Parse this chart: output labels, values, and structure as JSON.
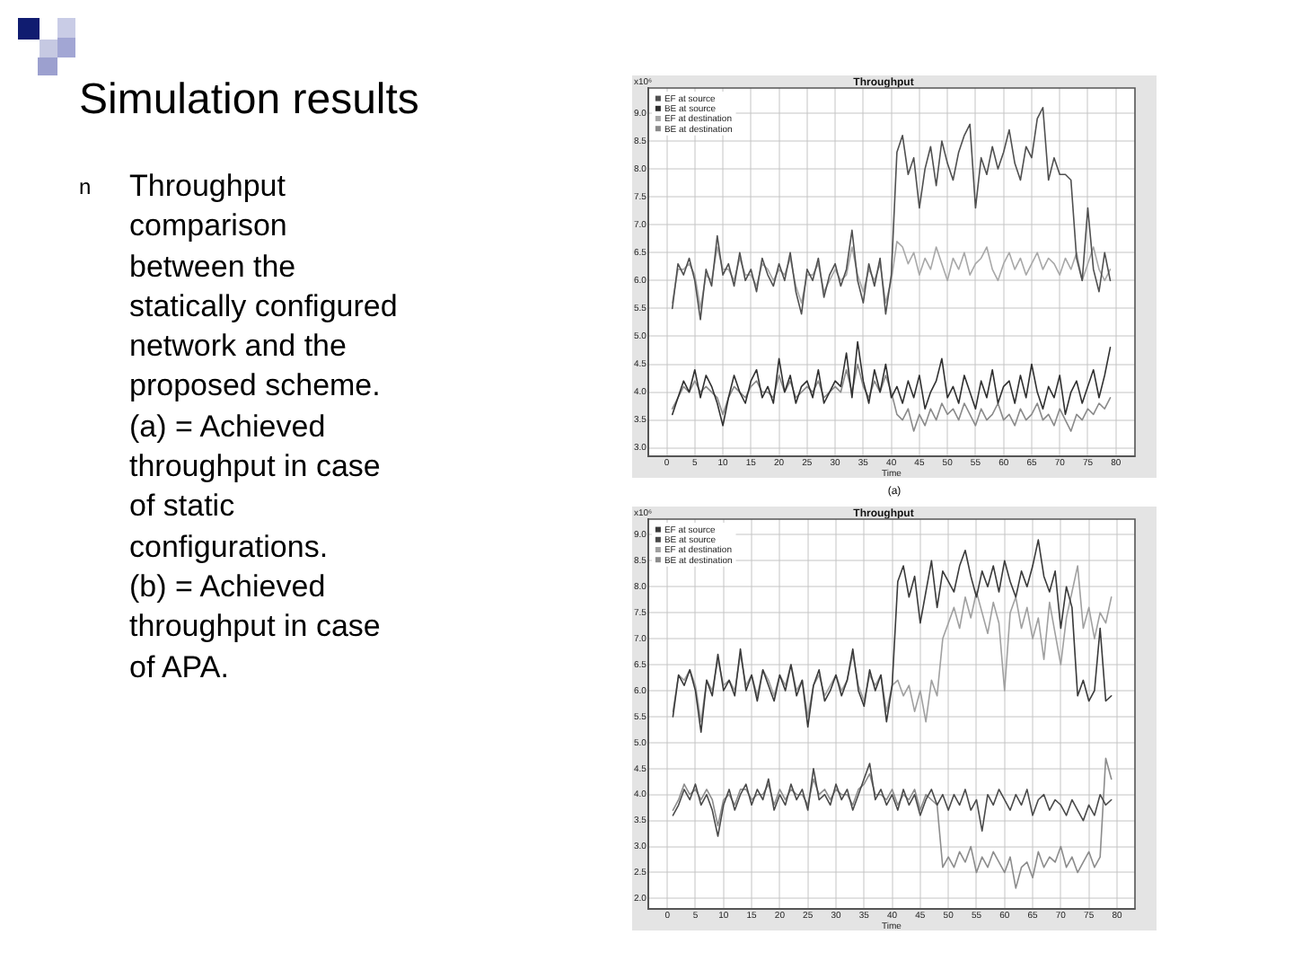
{
  "chart_data": [
    {
      "type": "other",
      "title": "Simulation results",
      "annotations": [
        "n",
        "Throughput\ncomparison\nbetween the\nstatically configured\nnetwork and the\nproposed scheme.\n(a) = Achieved\nthroughput in case\nof static\nconfigurations.",
        "(b) = Achieved\nthroughput in case\nof APA."
      ]
    },
    {
      "type": "line",
      "title": "Throughput",
      "xlabel": "Time",
      "annotations": [
        "x10⁶",
        "(a)"
      ],
      "grid": true,
      "legend": "top left",
      "x": [
        1,
        2,
        3,
        4,
        5,
        6,
        7,
        8,
        9,
        10,
        11,
        12,
        13,
        14,
        15,
        16,
        17,
        18,
        19,
        20,
        21,
        22,
        23,
        24,
        25,
        26,
        27,
        28,
        29,
        30,
        31,
        32,
        33,
        34,
        35,
        36,
        37,
        38,
        39,
        40,
        41,
        42,
        43,
        44,
        45,
        46,
        47,
        48,
        49,
        50,
        51,
        52,
        53,
        54,
        55,
        56,
        57,
        58,
        59,
        60,
        61,
        62,
        63,
        64,
        65,
        66,
        67,
        68,
        69,
        70,
        71,
        72,
        73,
        74,
        75,
        76,
        77,
        78,
        79
      ],
      "xlim": [
        -3.3,
        83.4
      ],
      "xticks": [
        0,
        5,
        10,
        15,
        20,
        25,
        30,
        35,
        40,
        45,
        50,
        55,
        60,
        65,
        70,
        75,
        80
      ],
      "ylim": [
        2.85,
        9.45
      ],
      "yticks": [
        {
          "value": 3,
          "label": "3.0"
        },
        {
          "value": 3.5,
          "label": "3.5"
        },
        {
          "value": 4,
          "label": "4.0"
        },
        {
          "value": 4.5,
          "label": "4.5"
        },
        {
          "value": 5,
          "label": "5.0"
        },
        {
          "value": 5.5,
          "label": "5.5"
        },
        {
          "value": 6,
          "label": "6.0"
        },
        {
          "value": 6.5,
          "label": "6.5"
        },
        {
          "value": 7,
          "label": "7.0"
        },
        {
          "value": 7.5,
          "label": "7.5"
        },
        {
          "value": 8,
          "label": "8.0"
        },
        {
          "value": 8.5,
          "label": "8.5"
        },
        {
          "value": 9,
          "label": "9.0"
        }
      ],
      "series": [
        {
          "name": "EF at source",
          "color": "#505050",
          "values": [
            5.5,
            6.3,
            6.1,
            6.4,
            6.0,
            5.3,
            6.2,
            5.9,
            6.8,
            6.1,
            6.3,
            5.9,
            6.5,
            6.0,
            6.2,
            5.8,
            6.4,
            6.1,
            5.9,
            6.3,
            6.0,
            6.5,
            5.8,
            5.4,
            6.2,
            6.0,
            6.4,
            5.7,
            6.1,
            6.3,
            5.9,
            6.2,
            6.9,
            6.0,
            5.6,
            6.3,
            5.9,
            6.4,
            5.4,
            6.1,
            8.3,
            8.6,
            7.9,
            8.2,
            7.3,
            8.0,
            8.4,
            7.7,
            8.5,
            8.1,
            7.8,
            8.3,
            8.6,
            8.8,
            7.3,
            8.2,
            7.9,
            8.4,
            8.0,
            8.3,
            8.7,
            8.1,
            7.8,
            8.4,
            8.2,
            8.9,
            9.1,
            7.8,
            8.2,
            7.9,
            7.9,
            7.8,
            6.4,
            6.0,
            7.3,
            6.2,
            5.8,
            6.5,
            6.0
          ]
        },
        {
          "name": "BE at source",
          "color": "#303030",
          "values": [
            3.6,
            3.9,
            4.2,
            4.0,
            4.4,
            3.9,
            4.3,
            4.1,
            3.8,
            3.4,
            3.9,
            4.3,
            4.0,
            3.8,
            4.2,
            4.4,
            3.9,
            4.1,
            3.8,
            4.6,
            4.0,
            4.3,
            3.8,
            4.1,
            4.2,
            3.9,
            4.4,
            3.8,
            4.0,
            4.2,
            4.1,
            4.7,
            3.9,
            4.9,
            4.2,
            3.8,
            4.4,
            4.0,
            4.5,
            3.9,
            4.1,
            3.8,
            4.2,
            3.9,
            4.3,
            3.7,
            4.0,
            4.2,
            4.6,
            3.9,
            4.1,
            3.8,
            4.3,
            4.0,
            3.7,
            4.2,
            3.9,
            4.4,
            3.8,
            4.1,
            4.2,
            3.8,
            4.3,
            3.9,
            4.5,
            4.0,
            3.7,
            4.1,
            3.9,
            4.3,
            3.6,
            4.0,
            4.2,
            3.8,
            4.1,
            4.4,
            3.9,
            4.3,
            4.8
          ]
        },
        {
          "name": "EF at destination",
          "color": "#a8a8a8",
          "values": [
            5.6,
            6.2,
            6.2,
            6.3,
            6.1,
            5.5,
            6.1,
            6.0,
            6.6,
            6.2,
            6.2,
            6.0,
            6.4,
            6.1,
            6.1,
            5.9,
            6.3,
            6.2,
            6.0,
            6.2,
            6.1,
            6.4,
            5.9,
            5.6,
            6.1,
            6.1,
            6.3,
            5.8,
            6.0,
            6.2,
            6.0,
            6.1,
            6.6,
            6.1,
            5.8,
            6.2,
            6.0,
            6.3,
            5.6,
            6.0,
            6.7,
            6.6,
            6.3,
            6.5,
            6.1,
            6.4,
            6.2,
            6.6,
            6.3,
            6.0,
            6.4,
            6.2,
            6.5,
            6.1,
            6.3,
            6.4,
            6.6,
            6.2,
            6.0,
            6.3,
            6.5,
            6.2,
            6.4,
            6.1,
            6.3,
            6.5,
            6.2,
            6.4,
            6.3,
            6.1,
            6.4,
            6.2,
            6.5,
            6.0,
            6.3,
            6.6,
            6.2,
            6.0,
            6.2
          ]
        },
        {
          "name": "BE at destination",
          "color": "#8a8a8a",
          "values": [
            3.7,
            3.9,
            4.1,
            4.0,
            4.2,
            4.0,
            4.1,
            4.0,
            3.9,
            3.6,
            3.9,
            4.1,
            4.0,
            3.9,
            4.1,
            4.2,
            4.0,
            4.0,
            3.9,
            4.3,
            4.0,
            4.2,
            3.9,
            4.0,
            4.1,
            4.0,
            4.2,
            3.9,
            4.0,
            4.1,
            4.0,
            4.4,
            4.0,
            4.5,
            4.1,
            3.9,
            4.2,
            4.0,
            4.3,
            4.0,
            3.6,
            3.5,
            3.7,
            3.3,
            3.6,
            3.4,
            3.7,
            3.5,
            3.8,
            3.6,
            3.7,
            3.5,
            3.8,
            3.6,
            3.4,
            3.7,
            3.5,
            3.6,
            3.8,
            3.5,
            3.6,
            3.4,
            3.7,
            3.5,
            3.6,
            3.8,
            3.5,
            3.6,
            3.4,
            3.7,
            3.5,
            3.3,
            3.6,
            3.5,
            3.7,
            3.6,
            3.8,
            3.7,
            3.9
          ]
        }
      ]
    },
    {
      "type": "line",
      "title": "Throughput",
      "xlabel": "Time",
      "annotations": [
        "x10⁶"
      ],
      "grid": true,
      "legend": "top left",
      "x": [
        1,
        2,
        3,
        4,
        5,
        6,
        7,
        8,
        9,
        10,
        11,
        12,
        13,
        14,
        15,
        16,
        17,
        18,
        19,
        20,
        21,
        22,
        23,
        24,
        25,
        26,
        27,
        28,
        29,
        30,
        31,
        32,
        33,
        34,
        35,
        36,
        37,
        38,
        39,
        40,
        41,
        42,
        43,
        44,
        45,
        46,
        47,
        48,
        49,
        50,
        51,
        52,
        53,
        54,
        55,
        56,
        57,
        58,
        59,
        60,
        61,
        62,
        63,
        64,
        65,
        66,
        67,
        68,
        69,
        70,
        71,
        72,
        73,
        74,
        75,
        76,
        77,
        78,
        79
      ],
      "xlim": [
        -3.4,
        83.2
      ],
      "xticks": [
        0,
        5,
        10,
        15,
        20,
        25,
        30,
        35,
        40,
        45,
        50,
        55,
        60,
        65,
        70,
        75,
        80
      ],
      "ylim": [
        1.8,
        9.3
      ],
      "yticks": [
        {
          "value": 2,
          "label": "2.0"
        },
        {
          "value": 2.5,
          "label": "2.5"
        },
        {
          "value": 3,
          "label": "3.0"
        },
        {
          "value": 3.5,
          "label": "3.5"
        },
        {
          "value": 4,
          "label": "4.0"
        },
        {
          "value": 4.5,
          "label": "4.5"
        },
        {
          "value": 5,
          "label": "5.0"
        },
        {
          "value": 5.5,
          "label": "5.5"
        },
        {
          "value": 6,
          "label": "6.0"
        },
        {
          "value": 6.5,
          "label": "6.5"
        },
        {
          "value": 7,
          "label": "7.0"
        },
        {
          "value": 7.5,
          "label": "7.5"
        },
        {
          "value": 8,
          "label": "8.0"
        },
        {
          "value": 8.5,
          "label": "8.5"
        },
        {
          "value": 9,
          "label": "9.0"
        }
      ],
      "series": [
        {
          "name": "EF at source",
          "color": "#3a3a3a",
          "values": [
            5.5,
            6.3,
            6.1,
            6.4,
            6.0,
            5.2,
            6.2,
            5.9,
            6.7,
            6.0,
            6.2,
            5.9,
            6.8,
            6.0,
            6.3,
            5.8,
            6.4,
            6.1,
            5.8,
            6.3,
            6.0,
            6.5,
            5.9,
            6.2,
            5.3,
            6.1,
            6.4,
            5.8,
            6.0,
            6.3,
            5.9,
            6.2,
            6.8,
            6.0,
            5.7,
            6.4,
            6.0,
            6.3,
            5.4,
            6.1,
            8.1,
            8.4,
            7.8,
            8.2,
            7.3,
            7.9,
            8.5,
            7.6,
            8.3,
            8.1,
            7.9,
            8.4,
            8.7,
            8.2,
            7.8,
            8.3,
            8.0,
            8.4,
            7.9,
            8.5,
            8.1,
            7.8,
            8.3,
            8.0,
            8.4,
            8.9,
            8.2,
            7.9,
            8.3,
            7.2,
            8.0,
            7.6,
            5.9,
            6.2,
            5.8,
            6.0,
            7.2,
            5.8,
            5.9
          ]
        },
        {
          "name": "BE at source",
          "color": "#4a4a4a",
          "values": [
            3.6,
            3.8,
            4.1,
            3.9,
            4.2,
            3.8,
            4.0,
            3.7,
            3.2,
            3.8,
            4.1,
            3.7,
            4.0,
            4.2,
            3.8,
            4.1,
            3.9,
            4.3,
            3.7,
            4.0,
            3.8,
            4.2,
            3.9,
            4.1,
            3.7,
            4.5,
            3.9,
            4.0,
            3.8,
            4.2,
            3.9,
            4.1,
            3.7,
            4.0,
            4.3,
            4.6,
            3.9,
            4.1,
            3.8,
            4.0,
            3.7,
            4.1,
            3.8,
            4.0,
            3.6,
            3.9,
            4.1,
            3.8,
            4.0,
            3.7,
            4.0,
            3.8,
            4.1,
            3.7,
            3.9,
            3.3,
            4.0,
            3.8,
            4.1,
            3.9,
            3.7,
            4.0,
            3.8,
            4.1,
            3.6,
            3.9,
            4.0,
            3.7,
            3.9,
            3.8,
            3.6,
            3.9,
            3.7,
            3.5,
            3.8,
            3.6,
            4.0,
            3.8,
            3.9
          ]
        },
        {
          "name": "EF at destination",
          "color": "#a0a0a0",
          "values": [
            5.6,
            6.3,
            6.2,
            6.4,
            6.1,
            5.4,
            6.2,
            6.0,
            6.6,
            6.1,
            6.2,
            6.0,
            6.7,
            6.1,
            6.3,
            5.9,
            6.4,
            6.2,
            5.9,
            6.3,
            6.1,
            6.5,
            6.0,
            6.2,
            5.5,
            6.1,
            6.3,
            5.9,
            6.1,
            6.3,
            6.0,
            6.2,
            6.7,
            6.1,
            5.8,
            6.3,
            6.1,
            6.3,
            5.6,
            6.1,
            6.2,
            5.9,
            6.1,
            5.6,
            6.0,
            5.4,
            6.2,
            5.9,
            7.0,
            7.3,
            7.6,
            7.2,
            7.8,
            7.4,
            7.9,
            7.5,
            7.1,
            7.7,
            7.3,
            6.0,
            7.5,
            7.8,
            7.2,
            7.6,
            7.0,
            7.4,
            6.6,
            7.7,
            7.1,
            6.5,
            7.4,
            7.9,
            8.4,
            7.2,
            7.6,
            7.0,
            7.5,
            7.3,
            7.8
          ]
        },
        {
          "name": "BE at destination",
          "color": "#8c8c8c",
          "values": [
            3.7,
            3.9,
            4.2,
            4.0,
            4.1,
            3.9,
            4.1,
            3.9,
            3.4,
            3.9,
            4.0,
            3.8,
            4.1,
            4.1,
            3.9,
            4.0,
            4.0,
            4.2,
            3.8,
            4.1,
            3.9,
            4.1,
            4.0,
            4.0,
            3.8,
            4.3,
            4.0,
            4.1,
            3.9,
            4.1,
            4.0,
            4.0,
            3.8,
            4.1,
            4.2,
            4.4,
            4.0,
            4.0,
            3.9,
            4.1,
            3.8,
            4.0,
            3.9,
            4.1,
            3.7,
            4.0,
            3.9,
            3.8,
            2.6,
            2.8,
            2.6,
            2.9,
            2.7,
            3.0,
            2.5,
            2.8,
            2.6,
            2.9,
            2.7,
            2.5,
            2.8,
            2.2,
            2.6,
            2.7,
            2.4,
            2.9,
            2.6,
            2.8,
            2.7,
            3.0,
            2.6,
            2.8,
            2.5,
            2.7,
            2.9,
            2.6,
            2.8,
            4.7,
            4.3
          ]
        }
      ]
    }
  ]
}
